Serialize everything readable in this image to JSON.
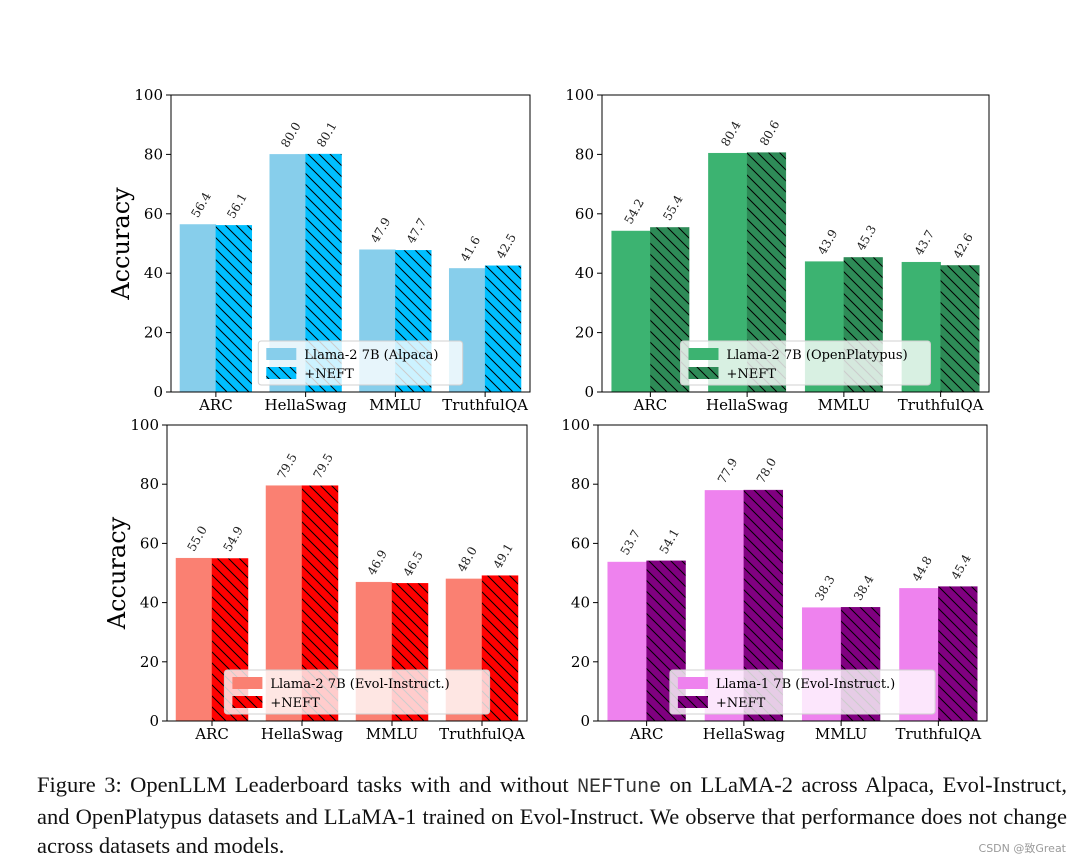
{
  "chart_data": [
    {
      "type": "bar",
      "categories": [
        "ARC",
        "HellaSwag",
        "MMLU",
        "TruthfulQA"
      ],
      "series": [
        {
          "name": "Llama-2 7B (Alpaca)",
          "values": [
            56.4,
            80.0,
            47.9,
            41.6
          ],
          "color": "#87ceeb",
          "hatch": false
        },
        {
          "name": "+NEFT",
          "values": [
            56.1,
            80.1,
            47.7,
            42.5
          ],
          "color": "#00bfff",
          "hatch": true
        }
      ],
      "value_labels": [
        [
          "56.4",
          "80.0",
          "47.9",
          "41.6"
        ],
        [
          "56.1",
          "80.1",
          "47.7",
          "42.5"
        ]
      ],
      "ylabel": "Accuracy",
      "ylim": [
        0,
        100
      ],
      "yticks": [
        "0",
        "20",
        "40",
        "60",
        "80",
        "100"
      ],
      "legend": "bottom-center"
    },
    {
      "type": "bar",
      "categories": [
        "ARC",
        "HellaSwag",
        "MMLU",
        "TruthfulQA"
      ],
      "series": [
        {
          "name": "Llama-2 7B (OpenPlatypus)",
          "values": [
            54.2,
            80.4,
            43.9,
            43.7
          ],
          "color": "#3cb371",
          "hatch": false
        },
        {
          "name": "+NEFT",
          "values": [
            55.4,
            80.6,
            45.3,
            42.6
          ],
          "color": "#2e8b57",
          "hatch": true
        }
      ],
      "value_labels": [
        [
          "54.2",
          "80.4",
          "43.9",
          "43.7"
        ],
        [
          "55.4",
          "80.6",
          "45.3",
          "42.6"
        ]
      ],
      "ylabel": "",
      "ylim": [
        0,
        100
      ],
      "yticks": [
        "0",
        "20",
        "40",
        "60",
        "80",
        "100"
      ],
      "legend": "bottom-center"
    },
    {
      "type": "bar",
      "categories": [
        "ARC",
        "HellaSwag",
        "MMLU",
        "TruthfulQA"
      ],
      "series": [
        {
          "name": "Llama-2 7B (Evol-Instruct.)",
          "values": [
            55.0,
            79.5,
            46.9,
            48.0
          ],
          "color": "#fa8072",
          "hatch": false
        },
        {
          "name": "+NEFT",
          "values": [
            54.9,
            79.5,
            46.5,
            49.1
          ],
          "color": "#ff0000",
          "hatch": true
        }
      ],
      "value_labels": [
        [
          "55.0",
          "79.5",
          "46.9",
          "48.0"
        ],
        [
          "54.9",
          "79.5",
          "46.5",
          "49.1"
        ]
      ],
      "ylabel": "Accuracy",
      "ylim": [
        0,
        100
      ],
      "yticks": [
        "0",
        "20",
        "40",
        "60",
        "80",
        "100"
      ],
      "legend": "bottom-center"
    },
    {
      "type": "bar",
      "categories": [
        "ARC",
        "HellaSwag",
        "MMLU",
        "TruthfulQA"
      ],
      "series": [
        {
          "name": "Llama-1 7B (Evol-Instruct.)",
          "values": [
            53.7,
            77.9,
            38.3,
            44.8
          ],
          "color": "#ee82ee",
          "hatch": false
        },
        {
          "name": "+NEFT",
          "values": [
            54.1,
            78.0,
            38.4,
            45.4
          ],
          "color": "#800080",
          "hatch": true
        }
      ],
      "value_labels": [
        [
          "53.7",
          "77.9",
          "38.3",
          "44.8"
        ],
        [
          "54.1",
          "78.0",
          "38.4",
          "45.4"
        ]
      ],
      "ylabel": "",
      "ylim": [
        0,
        100
      ],
      "yticks": [
        "0",
        "20",
        "40",
        "60",
        "80",
        "100"
      ],
      "legend": "bottom-center"
    }
  ],
  "caption": {
    "prefix": "Figure 3:  OpenLLM Leaderboard tasks with and without ",
    "code": "NEFTune",
    "suffix": " on LLaMA-2 across Alpaca, Evol-Instruct, and OpenPlatypus datasets and LLaMA-1 trained on Evol-Instruct. We observe that performance does not change across datasets and models."
  },
  "watermark": "CSDN @致Great"
}
